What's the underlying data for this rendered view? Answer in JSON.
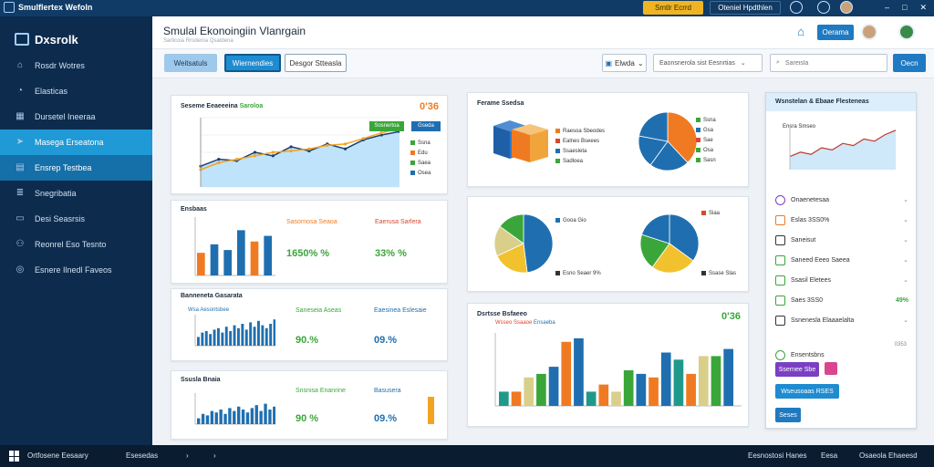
{
  "window": {
    "title": "Smulflertex Wefoln",
    "badge": "Smtlr Ecrrd",
    "account": "Oteniel Hpdthlen"
  },
  "sidebar": {
    "brand": "Dxsrolk",
    "items": [
      {
        "label": "Rosdr Wotres",
        "icon": "home-icon"
      },
      {
        "label": "Elasticas",
        "icon": "analytics-icon"
      },
      {
        "label": "Dursetel Ineeraa",
        "icon": "grid-icon"
      },
      {
        "label": "Masega Erseatona",
        "icon": "send-icon"
      },
      {
        "label": "Ensrep Testbea",
        "icon": "table-icon"
      },
      {
        "label": "Snegribatia",
        "icon": "stack-icon"
      },
      {
        "label": "Desi Seasrsis",
        "icon": "document-icon"
      },
      {
        "label": "Reonrel Eso Tesnto",
        "icon": "people-icon"
      },
      {
        "label": "Esnere Ilnedl Faveos",
        "icon": "globe-icon"
      }
    ]
  },
  "header": {
    "title": "Smulal Ekonoingiin Vlanrgain",
    "subtitle": "Sarlicoia Rrodenia Qsatdena",
    "button": "Oerama"
  },
  "toolbar": {
    "tab1": "Weitsatuls",
    "tab2": "Wiernendies",
    "tab3": "Desgor Stteasla",
    "select": "Elwda",
    "field": "Eaonsnerola sist Eesnrtias",
    "search_placeholder": "Sareisla",
    "go": "Oecn"
  },
  "card1": {
    "title": "Seseme Eeaeeeina",
    "title_green": "Saroloa",
    "pct": "0'36",
    "tag1": "Sosnertoa",
    "tag2": "Gseda"
  },
  "card2": {
    "title": "Ensbaas",
    "col1_title": "Sasornosa Seaoa",
    "col1_val": "1650% %",
    "col2_title": "Eaerusa Sarlera",
    "col2_val": "33% %"
  },
  "card3": {
    "title": "Banneneta Gasarata",
    "sub": "Wsa Aesontsbee",
    "col1_title": "Saneseia Aseas",
    "col1_val": "90.%",
    "col2_title": "Eaesinea Eslesaie",
    "col2_val": "09.%"
  },
  "card4": {
    "title": "Ssusla Bnaia",
    "col1_title": "Snsnisa Enanrine",
    "col1_val": "90 %",
    "col2_title": "Basusera",
    "col2_val": "09.%"
  },
  "card5": {
    "title": "Ferame Ssedsa",
    "legend": [
      "Raesoa Sbeodes",
      "Ealnes Bseees",
      "Ssaesleta",
      "Sadloea"
    ]
  },
  "card6": {
    "legend_top": "Gooa Gio",
    "legend_bottom": "Esno Seaer 9%",
    "legend2_top": "Siaa",
    "legend2_bottom": "Ssase Slas"
  },
  "card7": {
    "title": "Dsrtsse Bsfaeeo",
    "sub1": "Wsseo Ssaaoe",
    "sub2": "Ensaeba",
    "pct": "0'36"
  },
  "panel": {
    "title": "Wsnstelan & Ebaae Flesteneas",
    "sub": "Ensra Smseo",
    "items": [
      {
        "label": "Onaenetesaa",
        "val": "",
        "icon": "gear-icon"
      },
      {
        "label": "Eslas 3SS0%",
        "val": "",
        "icon": "chart-icon"
      },
      {
        "label": "Saneisut",
        "val": "",
        "icon": "bars-icon"
      },
      {
        "label": "Saneed Eeeo Saeea",
        "val": "",
        "icon": "pencil-icon"
      },
      {
        "label": "Ssasil Eletees",
        "val": "",
        "icon": "gauge-icon"
      },
      {
        "label": "Saes 3SS0",
        "val": "49%",
        "icon": "donut-icon"
      },
      {
        "label": "Ssnenesla Elaaaelalta",
        "val": "",
        "icon": "link-icon"
      },
      {
        "label": "Ensentsbns",
        "val": "",
        "icon": "refresh-icon"
      }
    ],
    "btn1": "Ssernee Sbe",
    "btn2": "Wseusoaas RSES",
    "btn3": "Seses",
    "footer_val": "0353"
  },
  "footer": {
    "left": "Ortfosene Eesaary",
    "mid": "Esesedas",
    "r1": "Eesnostosi Hanes",
    "r2": "Eesa",
    "r3": "Osaeola Ehaeesd"
  },
  "colors": {
    "accent": "#1f7ac1",
    "sidebar": "#0d2b4d",
    "green": "#3aa63a",
    "orange": "#f07a22",
    "yellow": "#f2c12e",
    "blue": "#1f6fb0"
  },
  "chart_data": [
    {
      "type": "area",
      "series": [
        {
          "values": [
            30,
            40,
            38,
            50,
            45,
            58,
            52,
            62,
            55,
            68,
            75,
            80
          ]
        },
        {
          "values": [
            25,
            35,
            40,
            45,
            50,
            52,
            55,
            60,
            62,
            70,
            78,
            85
          ]
        }
      ]
    },
    {
      "type": "bar",
      "values": [
        40,
        55,
        45,
        80,
        60,
        70
      ]
    },
    {
      "type": "bar",
      "values": [
        30,
        45,
        50,
        40,
        55,
        60,
        45,
        65,
        50,
        70,
        60,
        75,
        55,
        80,
        65,
        85,
        70,
        60,
        75,
        90
      ]
    },
    {
      "type": "bar",
      "values": [
        20,
        35,
        30,
        45,
        40,
        50,
        35,
        55,
        45,
        60,
        50,
        40,
        55,
        65,
        45,
        70,
        50,
        60
      ]
    },
    {
      "type": "pie",
      "values": [
        38,
        22,
        18,
        22
      ]
    },
    {
      "type": "pie",
      "values": [
        48,
        20,
        17,
        15
      ]
    },
    {
      "type": "pie",
      "values": [
        35,
        25,
        20,
        20
      ]
    },
    {
      "type": "bar",
      "values": [
        20,
        20,
        40,
        45,
        55,
        90,
        95,
        20,
        30,
        20,
        50,
        45,
        40,
        75,
        65,
        45,
        70,
        70,
        80
      ]
    },
    {
      "type": "line",
      "values": [
        30,
        40,
        35,
        50,
        45,
        60,
        55,
        70,
        65,
        80,
        90
      ]
    }
  ]
}
